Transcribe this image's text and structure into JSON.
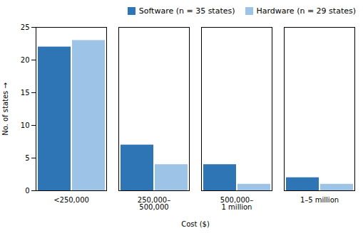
{
  "chart_data": {
    "type": "bar",
    "categories": [
      "<250,000",
      "250,000–\n500,000",
      "500,000–\n1 million",
      "1–5 million"
    ],
    "series": [
      {
        "name": "Software (n = 35 states)",
        "color": "#2e75b6",
        "values": [
          22,
          7,
          4,
          2
        ]
      },
      {
        "name": "Hardware (n = 29 states)",
        "color": "#9dc3e6",
        "values": [
          23,
          4,
          1,
          1
        ]
      }
    ],
    "xlabel": "Cost ($)",
    "ylabel": "No. of states",
    "ylim": [
      0,
      25
    ],
    "yticks": [
      0,
      5,
      10,
      15,
      20,
      25
    ],
    "grid": false,
    "legend": "upper right"
  }
}
